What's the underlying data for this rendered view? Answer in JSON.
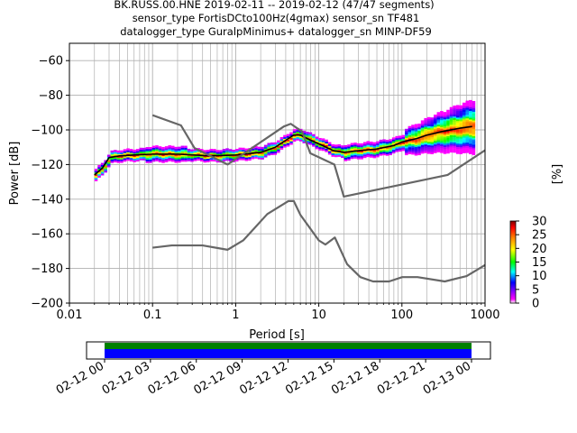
{
  "chart_data": [
    {
      "type": "ppsd",
      "title_lines": [
        "BK.RUSS.00.HNE   2019-02-11 -- 2019-02-12  (47/47 segments)",
        "sensor_type FortisDCto100Hz(4gmax) sensor_sn TF481",
        "datalogger_type GuralpMinimus+ datalogger_sn MINP-DF59"
      ],
      "xlabel": "Period [s]",
      "ylabel": "Power [dB]",
      "x_scale": "log",
      "xlim": [
        0.01,
        1000
      ],
      "ylim": [
        -200,
        -50
      ],
      "x_ticks": [
        0.01,
        0.1,
        1,
        10,
        100,
        1000
      ],
      "x_tick_labels": [
        "0.01",
        "0.1",
        "1",
        "10",
        "100",
        "1000"
      ],
      "y_ticks": [
        -200,
        -180,
        -160,
        -140,
        -120,
        -100,
        -80,
        -60
      ],
      "y_tick_labels": [
        "−200",
        "−180",
        "−160",
        "−140",
        "−120",
        "−100",
        "−80",
        "−60"
      ],
      "grid": true,
      "series": [
        {
          "role": "mode",
          "color": "#000000",
          "x": [
            0.02,
            0.025,
            0.03,
            0.04,
            0.06,
            0.1,
            0.2,
            0.5,
            1,
            2,
            3,
            4,
            5,
            6,
            8,
            10,
            15,
            20,
            30,
            50,
            80,
            100,
            150,
            200,
            300,
            500,
            700
          ],
          "y": [
            -126,
            -122,
            -116,
            -115,
            -114.5,
            -114,
            -114,
            -115,
            -114.5,
            -113,
            -110,
            -106,
            -103,
            -103,
            -106,
            -108,
            -112,
            -113,
            -112,
            -111,
            -109,
            -107,
            -105,
            -103,
            -101,
            -99,
            -98
          ]
        },
        {
          "role": "high_noise_model",
          "color": "#666666",
          "x": [
            0.1,
            0.22,
            0.32,
            0.8,
            3.8,
            4.6,
            6.3,
            7.9,
            15.4,
            20,
            354.8,
            10000
          ],
          "y": [
            -91.5,
            -97.4,
            -110.5,
            -120,
            -98,
            -96.5,
            -101,
            -113.5,
            -120,
            -138.5,
            -126,
            -80.1
          ]
        },
        {
          "role": "low_noise_model",
          "color": "#666666",
          "x": [
            0.1,
            0.17,
            0.4,
            0.8,
            1.24,
            2.4,
            4.3,
            5,
            6,
            10,
            12,
            15.6,
            21.9,
            31.6,
            45,
            70,
            101,
            154,
            328,
            600,
            1000
          ],
          "y": [
            -168,
            -166.7,
            -166.7,
            -169.2,
            -163.7,
            -148.6,
            -141.1,
            -141.1,
            -149,
            -163.8,
            -166.2,
            -162.1,
            -177.5,
            -185,
            -187.5,
            -187.5,
            -185,
            -185,
            -187.5,
            -184.4,
            -178
          ]
        }
      ],
      "colorbar": {
        "label": "[%]",
        "range": [
          0,
          30
        ],
        "ticks": [
          0,
          5,
          10,
          15,
          20,
          25,
          30
        ],
        "colormap": "pqlx"
      },
      "coverage": {
        "type": "timeline",
        "x_tick_labels": [
          "02-12 00",
          "02-12 03",
          "02-12 06",
          "02-12 09",
          "02-12 12",
          "02-12 15",
          "02-12 18",
          "02-12 21",
          "02-13 00"
        ],
        "tracks": [
          {
            "name": "green",
            "color": "#008000",
            "start": "02-12 00",
            "end": "02-13 00"
          },
          {
            "name": "blue",
            "color": "#0000ff",
            "start": "02-12 00",
            "end": "02-13 00"
          }
        ]
      }
    }
  ]
}
